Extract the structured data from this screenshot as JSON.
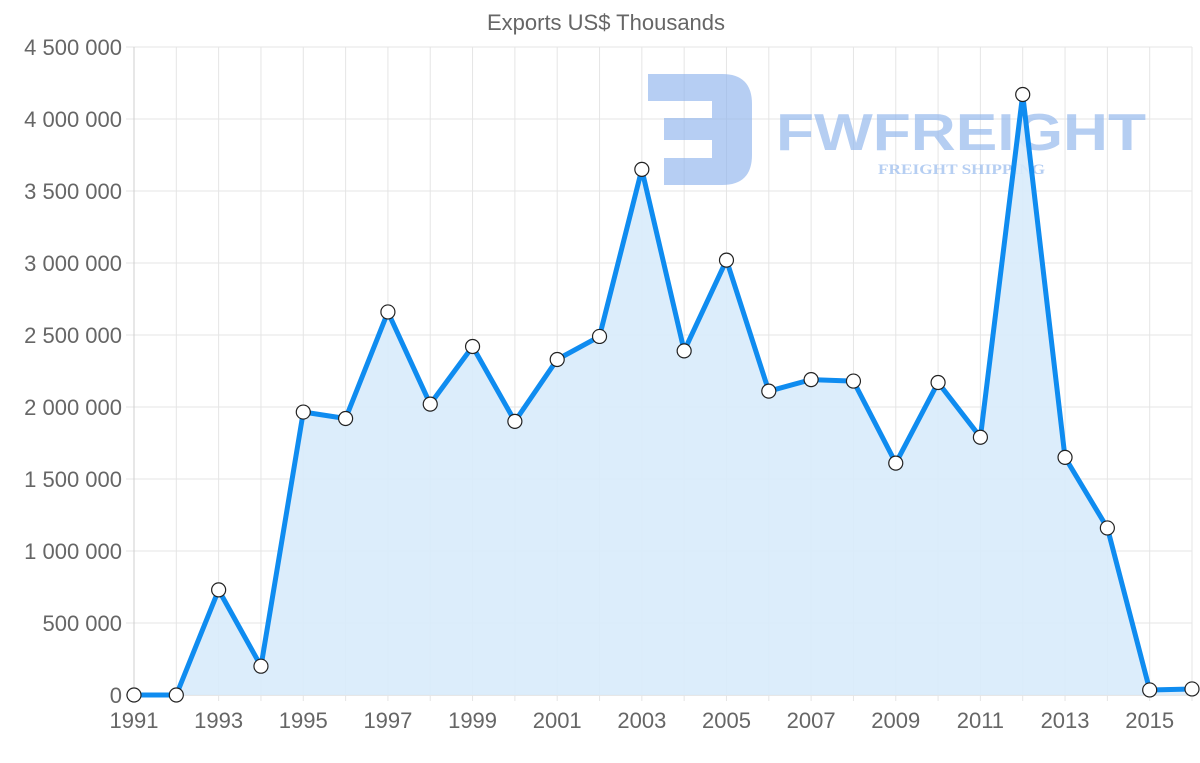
{
  "chart_data": {
    "type": "area",
    "title": "Exports US$ Thousands",
    "xlabel": "",
    "ylabel": "",
    "x": [
      1991,
      1992,
      1993,
      1994,
      1995,
      1996,
      1997,
      1998,
      1999,
      2000,
      2001,
      2002,
      2003,
      2004,
      2005,
      2006,
      2007,
      2008,
      2009,
      2010,
      2011,
      2012,
      2013,
      2014,
      2015,
      2016
    ],
    "series": [
      {
        "name": "Exports US$ Thousands",
        "values": [
          0,
          0,
          730000,
          200000,
          1965000,
          1920000,
          2660000,
          2020000,
          2420000,
          1900000,
          2330000,
          2490000,
          3650000,
          2390000,
          3020000,
          2110000,
          2190000,
          2180000,
          1610000,
          2170000,
          1790000,
          4170000,
          1650000,
          1160000,
          35000,
          42000
        ],
        "color": "#0f8cf0",
        "fill": "#d8ebfb"
      }
    ],
    "x_tick_labels": [
      "1991",
      "1993",
      "1995",
      "1997",
      "1999",
      "2001",
      "2003",
      "2005",
      "2007",
      "2009",
      "2011",
      "2013",
      "2015"
    ],
    "y_tick_labels": [
      "0",
      "500 000",
      "1 000 000",
      "1 500 000",
      "2 000 000",
      "2 500 000",
      "3 000 000",
      "3 500 000",
      "4 000 000",
      "4 500 000"
    ],
    "ylim": [
      0,
      4500000
    ],
    "xlim": [
      1991,
      2016
    ],
    "grid": true,
    "legend": "none"
  },
  "watermark": {
    "brand": "FWFREIGHT",
    "tagline": "FREIGHT SHIPPING",
    "color": "#8fb4ec"
  }
}
